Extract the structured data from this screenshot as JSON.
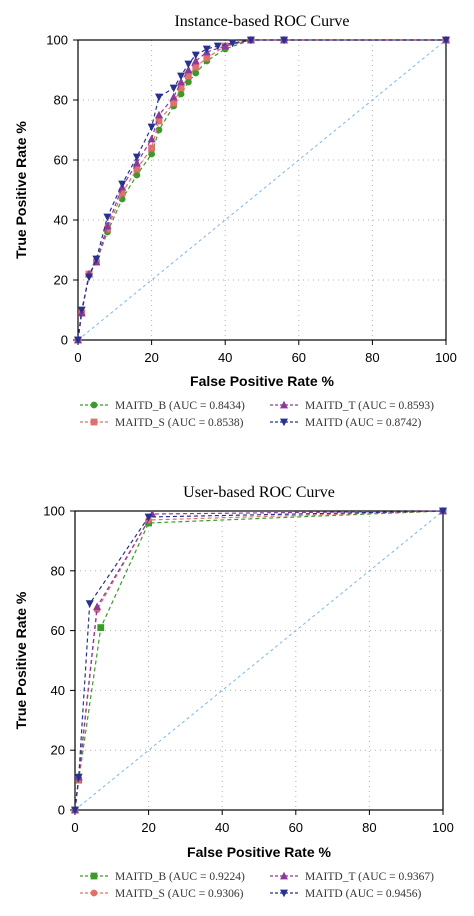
{
  "chart_data": [
    {
      "type": "line",
      "title": "Instance-based ROC Curve",
      "xlabel": "False Positive Rate %",
      "ylabel": "True Positive Rate %",
      "xlim": [
        0,
        100
      ],
      "ylim": [
        0,
        100
      ],
      "x_ticks": [
        "0",
        "20",
        "40",
        "60",
        "80",
        "100"
      ],
      "y_ticks": [
        "0",
        "20",
        "40",
        "60",
        "80",
        "100"
      ],
      "grid": true,
      "legend_position": "below",
      "series": [
        {
          "name": "MAITD_B (AUC = 0.8434)",
          "color": "#3a9a2a",
          "marker": "circle",
          "x": [
            0,
            1,
            3,
            5,
            8,
            12,
            16,
            20,
            22,
            26,
            28,
            30,
            32,
            35,
            40,
            47,
            56,
            100
          ],
          "y": [
            0,
            9,
            22,
            26,
            36,
            47,
            55,
            62,
            70,
            78,
            82,
            86,
            89,
            93,
            97,
            100,
            100,
            100
          ]
        },
        {
          "name": "MAITD_S (AUC = 0.8538)",
          "color": "#e0706a",
          "marker": "square",
          "x": [
            0,
            1,
            3,
            5,
            8,
            12,
            16,
            20,
            22,
            26,
            28,
            30,
            32,
            35,
            40,
            47,
            56,
            100
          ],
          "y": [
            0,
            9,
            22,
            26,
            37,
            49,
            57,
            64,
            73,
            79,
            84,
            88,
            91,
            94,
            98,
            100,
            100,
            100
          ]
        },
        {
          "name": "MAITD_T (AUC = 0.8593)",
          "color": "#8a3a9a",
          "marker": "triangle-up",
          "x": [
            0,
            1,
            3,
            5,
            8,
            12,
            16,
            20,
            22,
            26,
            28,
            30,
            32,
            35,
            40,
            47,
            56,
            100
          ],
          "y": [
            0,
            9,
            22,
            26,
            38,
            51,
            59,
            67,
            75,
            81,
            86,
            90,
            93,
            96,
            98,
            100,
            100,
            100
          ]
        },
        {
          "name": "MAITD (AUC = 0.8742)",
          "color": "#27318f",
          "marker": "triangle-down",
          "x": [
            0,
            1,
            3,
            5,
            8,
            12,
            16,
            20,
            22,
            26,
            28,
            30,
            32,
            35,
            38,
            42,
            47,
            56,
            100
          ],
          "y": [
            0,
            10,
            21,
            27,
            41,
            52,
            61,
            71,
            81,
            84,
            88,
            92,
            95,
            97,
            98,
            99,
            100,
            100,
            100
          ]
        },
        {
          "name": "",
          "color": "#7bb8e8",
          "marker": "none",
          "dashed": true,
          "x": [
            0,
            100
          ],
          "y": [
            0,
            100
          ]
        }
      ]
    },
    {
      "type": "line",
      "title": "User-based ROC Curve",
      "xlabel": "False Positive Rate %",
      "ylabel": "True Positive Rate %",
      "xlim": [
        0,
        100
      ],
      "ylim": [
        0,
        100
      ],
      "x_ticks": [
        "0",
        "20",
        "40",
        "60",
        "80",
        "100"
      ],
      "y_ticks": [
        "0",
        "20",
        "40",
        "60",
        "80",
        "100"
      ],
      "grid": true,
      "legend_position": "below",
      "series": [
        {
          "name": "MAITD_B (AUC = 0.9224)",
          "color": "#3a9a2a",
          "marker": "square",
          "x": [
            0,
            1,
            7,
            20,
            100
          ],
          "y": [
            0,
            10,
            61,
            96,
            100
          ]
        },
        {
          "name": "MAITD_S (AUC = 0.9306)",
          "color": "#e0706a",
          "marker": "circle",
          "x": [
            0,
            1,
            6,
            20,
            100
          ],
          "y": [
            0,
            10,
            67,
            97,
            100
          ]
        },
        {
          "name": "MAITD_T (AUC = 0.9367)",
          "color": "#8a3a9a",
          "marker": "triangle-up",
          "x": [
            0,
            1,
            6,
            21,
            100
          ],
          "y": [
            0,
            11,
            68,
            99,
            100
          ]
        },
        {
          "name": "MAITD (AUC = 0.9456)",
          "color": "#27318f",
          "marker": "triangle-down",
          "x": [
            0,
            1,
            4,
            20,
            100
          ],
          "y": [
            0,
            11,
            69,
            98,
            100
          ]
        },
        {
          "name": "",
          "color": "#7bb8e8",
          "marker": "none",
          "dashed": true,
          "x": [
            0,
            100
          ],
          "y": [
            0,
            100
          ]
        }
      ]
    }
  ]
}
